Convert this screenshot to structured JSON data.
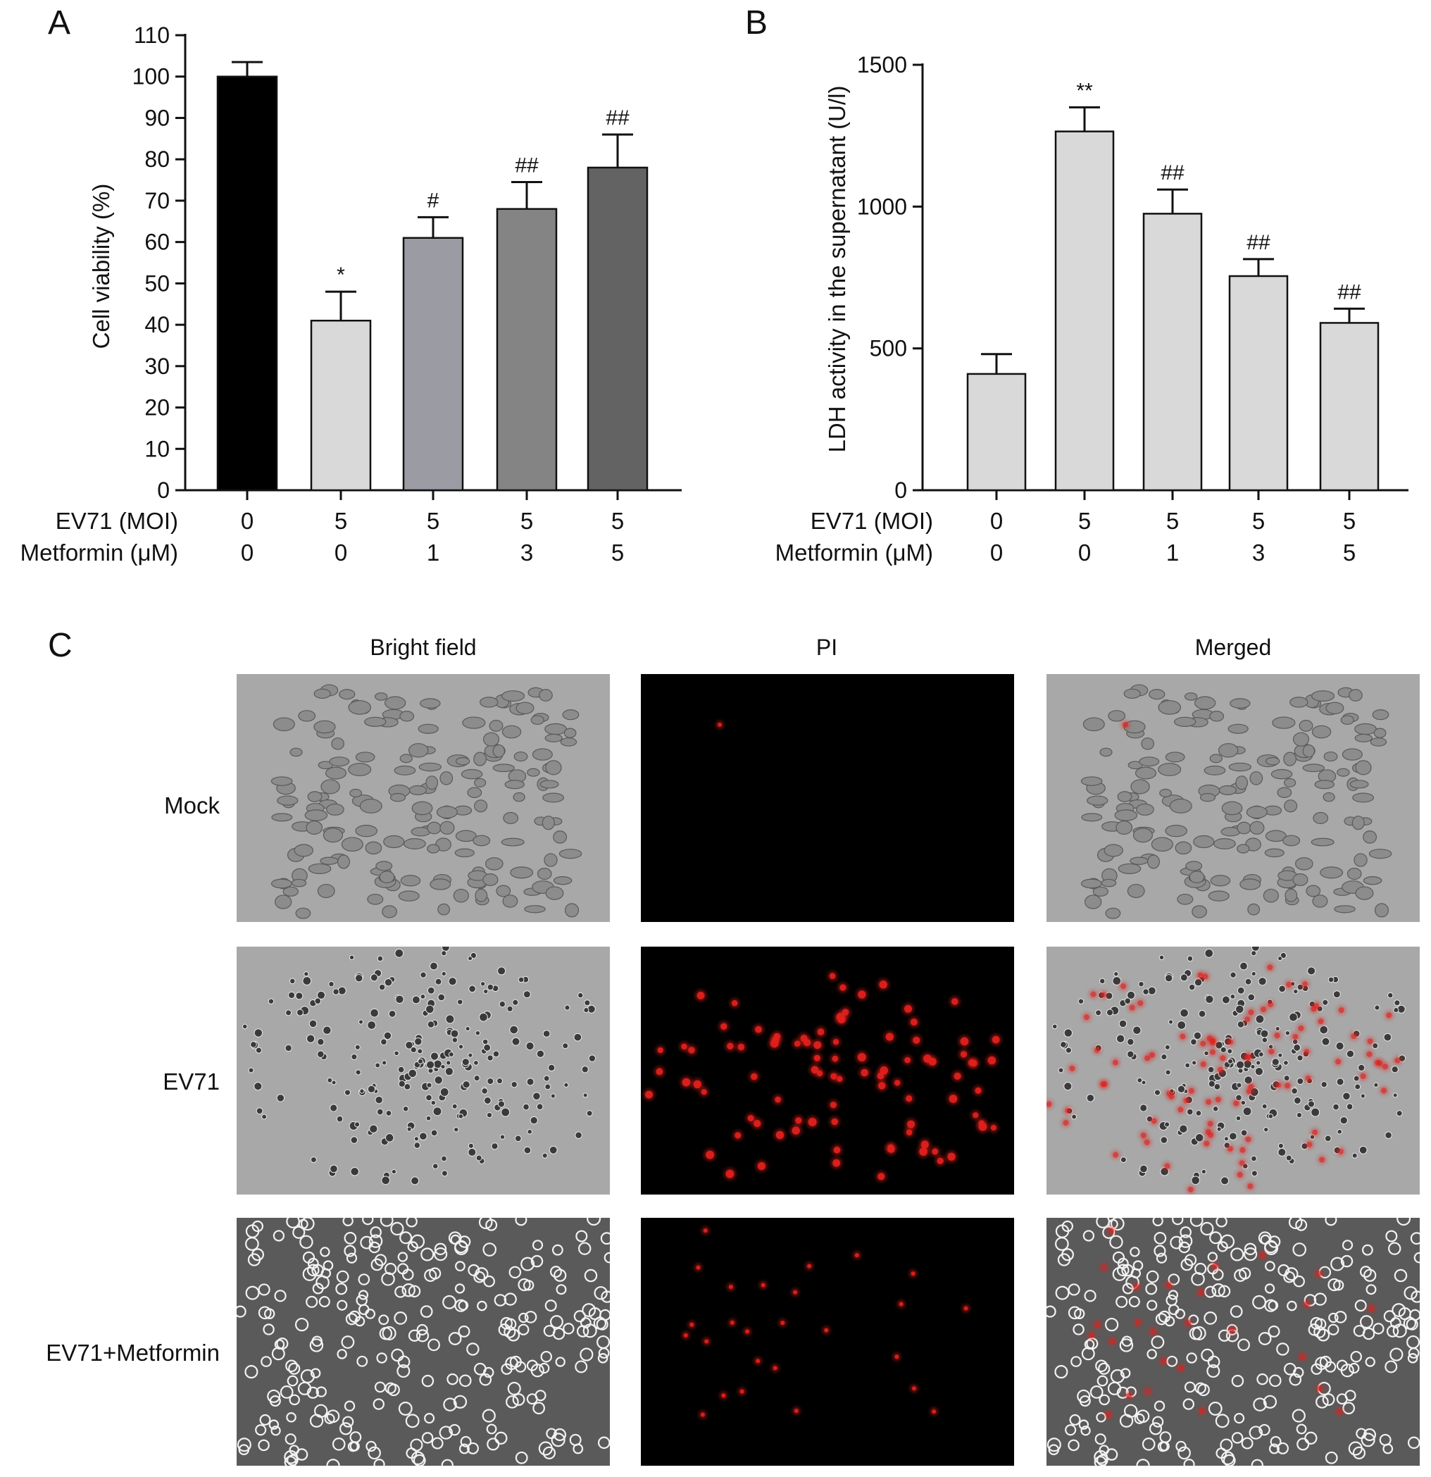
{
  "panels": {
    "a": "A",
    "b": "B",
    "c": "C"
  },
  "chart_data": [
    {
      "type": "bar",
      "panel": "A",
      "ylabel": "Cell viability (%)",
      "ylim": [
        0,
        110
      ],
      "yticks": [
        0,
        10,
        20,
        30,
        40,
        50,
        60,
        70,
        80,
        90,
        100,
        110
      ],
      "categories": [
        "1",
        "2",
        "3",
        "4",
        "5"
      ],
      "values": [
        100,
        41,
        61,
        68,
        78
      ],
      "errors": [
        3.5,
        7,
        5,
        6.5,
        8
      ],
      "annotations": [
        "",
        "*",
        "#",
        "##",
        "##"
      ],
      "bar_colors": [
        "#000000",
        "#d9d9d9",
        "#9b9ba3",
        "#848484",
        "#636363"
      ],
      "conditions": [
        {
          "label": "EV71 (MOI)",
          "values": [
            "0",
            "5",
            "5",
            "5",
            "5"
          ]
        },
        {
          "label": "Metformin (μM)",
          "values": [
            "0",
            "0",
            "1",
            "3",
            "5"
          ]
        }
      ]
    },
    {
      "type": "bar",
      "panel": "B",
      "ylabel": "LDH activity in the supernatant (U/l)",
      "ylim": [
        0,
        1500
      ],
      "yticks": [
        0,
        500,
        1000,
        1500
      ],
      "categories": [
        "1",
        "2",
        "3",
        "4",
        "5"
      ],
      "values": [
        410,
        1265,
        975,
        755,
        590
      ],
      "errors": [
        70,
        85,
        85,
        60,
        50
      ],
      "annotations": [
        "",
        "**",
        "##",
        "##",
        "##"
      ],
      "bar_colors": [
        "#d9d9d9",
        "#d9d9d9",
        "#d9d9d9",
        "#d9d9d9",
        "#d9d9d9"
      ],
      "conditions": [
        {
          "label": "EV71 (MOI)",
          "values": [
            "0",
            "5",
            "5",
            "5",
            "5"
          ]
        },
        {
          "label": "Metformin (μM)",
          "values": [
            "0",
            "0",
            "1",
            "3",
            "5"
          ]
        }
      ]
    }
  ],
  "micrographs": {
    "columns": [
      "Bright field",
      "PI",
      "Merged"
    ],
    "rows": [
      "Mock",
      "EV71",
      "EV71+Metformin"
    ],
    "colors": {
      "pi_background": "#000000",
      "pi_cell": "#e0201c",
      "bright_bg": "#a8a8a8",
      "phase_bg": "#5a5a5a"
    },
    "red_cells_per_row": [
      1,
      90,
      26
    ]
  }
}
